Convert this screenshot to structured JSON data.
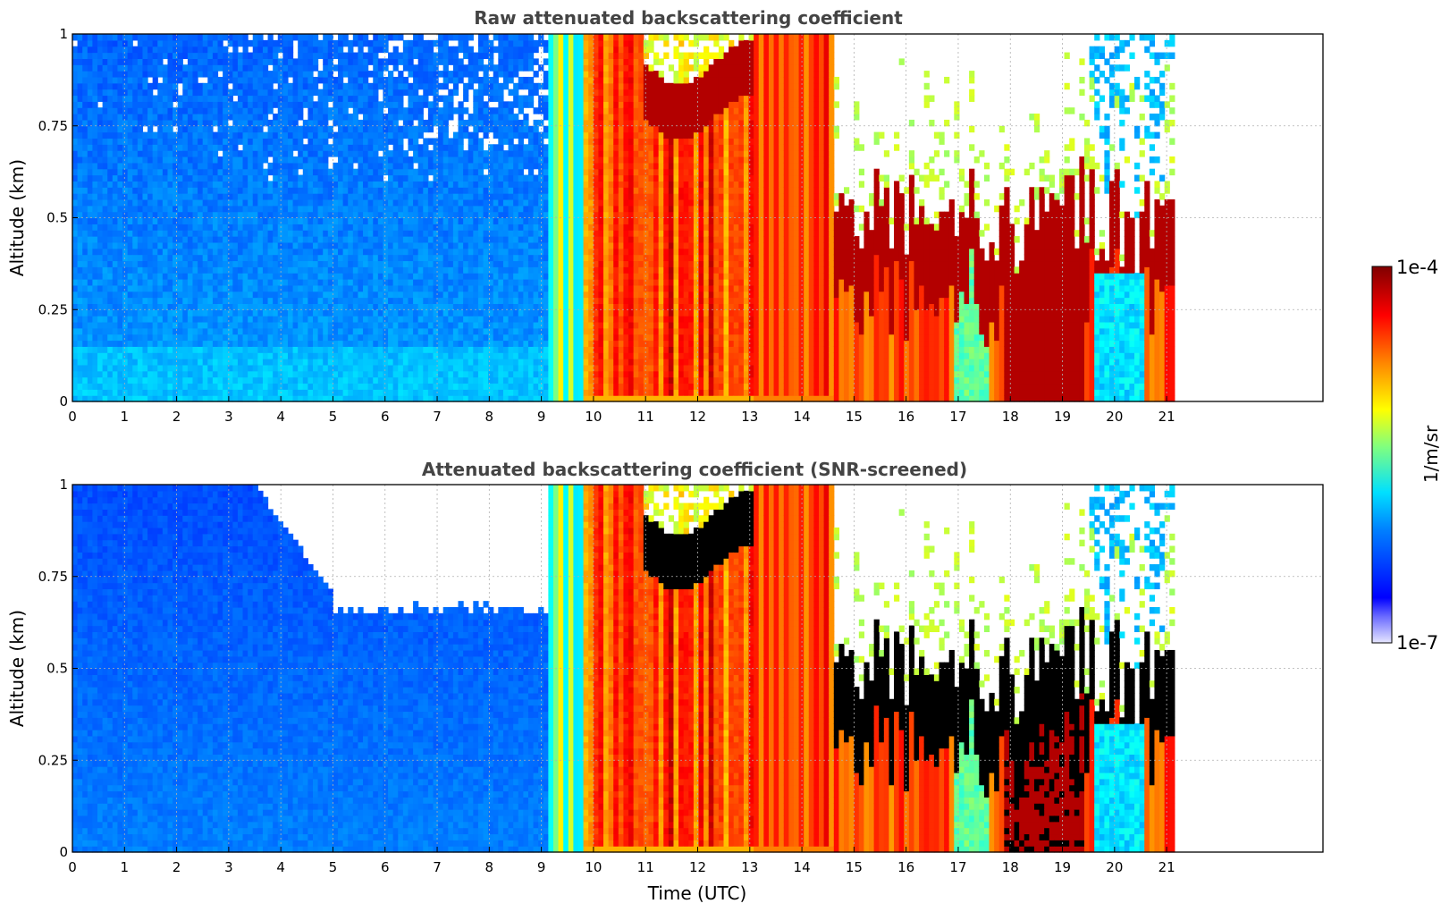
{
  "chart_data": [
    {
      "type": "heatmap",
      "title": "Raw attenuated backscattering coefficient",
      "xlabel": "",
      "ylabel": "Altitude (km)",
      "xlim": [
        0,
        24
      ],
      "ylim": [
        0,
        1
      ],
      "xticks": [
        "0",
        "1",
        "2",
        "3",
        "4",
        "5",
        "6",
        "7",
        "8",
        "9",
        "10",
        "11",
        "12",
        "13",
        "14",
        "15",
        "16",
        "17",
        "18",
        "19",
        "20",
        "21"
      ],
      "yticks": [
        "0",
        "0.25",
        "0.5",
        "0.75",
        "1"
      ],
      "data_extent_x": [
        0,
        21.15
      ],
      "grid": true,
      "screened": false
    },
    {
      "type": "heatmap",
      "title": "Attenuated backscattering coefficient (SNR-screened)",
      "xlabel": "Time (UTC)",
      "ylabel": "Altitude (km)",
      "xlim": [
        0,
        24
      ],
      "ylim": [
        0,
        1
      ],
      "xticks": [
        "0",
        "1",
        "2",
        "3",
        "4",
        "5",
        "6",
        "7",
        "8",
        "9",
        "10",
        "11",
        "12",
        "13",
        "14",
        "15",
        "16",
        "17",
        "18",
        "19",
        "20",
        "21"
      ],
      "yticks": [
        "0",
        "0.25",
        "0.5",
        "0.75",
        "1"
      ],
      "data_extent_x": [
        0,
        21.15
      ],
      "grid": true,
      "screened": true
    }
  ],
  "colorbar": {
    "label": "1/m/sr",
    "min_label": "1e-7",
    "max_label": "1e-4",
    "min": 1e-07,
    "max": 0.0001,
    "scale": "log",
    "colormap": "jet"
  },
  "colors": {
    "title": "#444444",
    "grid": "#b0b0b0",
    "missing": "#ffffff"
  }
}
